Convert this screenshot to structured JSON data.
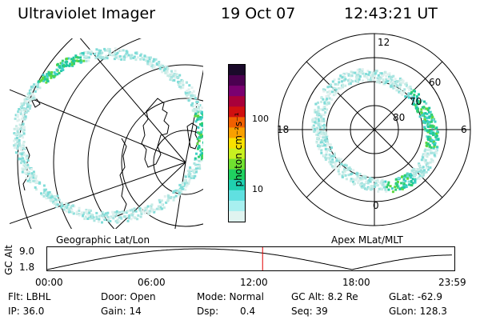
{
  "header": {
    "instrument": "Ultraviolet Imager",
    "date": "19 Oct 07",
    "time": "12:43:21 UT"
  },
  "colorbar": {
    "unit_label": "photon cm⁻²s⁻¹",
    "ticks": [
      "100",
      "10"
    ],
    "colors": [
      "#1a0a2a",
      "#4b0050",
      "#7a0070",
      "#a8003a",
      "#d01010",
      "#f06000",
      "#f8a000",
      "#f8e000",
      "#c8f020",
      "#70e030",
      "#20d060",
      "#20d0b0",
      "#60e0e0",
      "#a8f0f0",
      "#e0f4f0"
    ]
  },
  "left_map": {
    "label": "Geographic Lat/Lon"
  },
  "right_map": {
    "label": "Apex MLat/MLT",
    "mlt_labels": {
      "top": "12",
      "left": "18",
      "right": "6",
      "bottom": "0"
    },
    "mlat_labels": [
      "60",
      "70",
      "80"
    ]
  },
  "altitude_plot": {
    "ylabel": "GC Alt",
    "yticks": [
      "9.0",
      "1.8"
    ],
    "xticks": [
      "00:00",
      "06:00",
      "12:00",
      "18:00",
      "23:59"
    ],
    "current_time_hours": 12.72,
    "marker_color": "#e00000"
  },
  "info": {
    "row1": {
      "filter": "Flt: LBHL",
      "door": "Door: Open",
      "mode": "Mode: Normal",
      "gc_alt": "GC Alt: 8.2 Re",
      "glat": "GLat: -62.9"
    },
    "row2": {
      "ip": "IP: 36.0",
      "gain": "Gain: 14",
      "dsp_label": "Dsp:",
      "dsp_value": "0.4",
      "seq": "Seq: 39",
      "glon": "GLon: 128.3"
    }
  }
}
